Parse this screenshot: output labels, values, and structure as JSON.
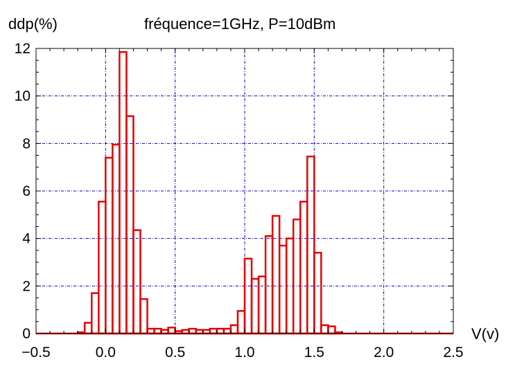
{
  "chart_data": {
    "type": "bar",
    "title": "fréquence=1GHz, P=10dBm",
    "ylabel": "ddp(%)",
    "xlabel": "V(v)",
    "xlim": [
      -0.5,
      2.5
    ],
    "ylim": [
      0,
      12
    ],
    "xticks": [
      "−0.5",
      "0.0",
      "0.5",
      "1.0",
      "1.5",
      "2.0",
      "2.5"
    ],
    "xtick_values": [
      -0.5,
      0.0,
      0.5,
      1.0,
      1.5,
      2.0,
      2.5
    ],
    "yticks": [
      "0",
      "2",
      "4",
      "6",
      "8",
      "10",
      "12"
    ],
    "ytick_values": [
      0,
      2,
      4,
      6,
      8,
      10,
      12
    ],
    "grid": true,
    "bar_color": "#e60000",
    "grid_color": "#0000c8",
    "bin_width": 0.05,
    "bin_centers": [
      -0.475,
      -0.425,
      -0.375,
      -0.325,
      -0.275,
      -0.225,
      -0.175,
      -0.125,
      -0.075,
      -0.025,
      0.025,
      0.075,
      0.125,
      0.175,
      0.225,
      0.275,
      0.325,
      0.375,
      0.425,
      0.475,
      0.525,
      0.575,
      0.625,
      0.675,
      0.725,
      0.775,
      0.825,
      0.875,
      0.925,
      0.975,
      1.025,
      1.075,
      1.125,
      1.175,
      1.225,
      1.275,
      1.325,
      1.375,
      1.425,
      1.475,
      1.525,
      1.575,
      1.625,
      1.675,
      1.725,
      1.775,
      1.825,
      1.875,
      1.925,
      1.975,
      2.025,
      2.075,
      2.125,
      2.175,
      2.225,
      2.275,
      2.325,
      2.375,
      2.425,
      2.475
    ],
    "values": [
      0,
      0,
      0,
      0,
      0,
      0,
      0.05,
      0.45,
      1.7,
      5.55,
      7.4,
      7.95,
      11.85,
      9.15,
      4.35,
      1.45,
      0.2,
      0.2,
      0.15,
      0.25,
      0.1,
      0.15,
      0.2,
      0.15,
      0.15,
      0.2,
      0.2,
      0.2,
      0.35,
      0.95,
      3.15,
      2.3,
      2.4,
      4.1,
      4.95,
      3.7,
      4.0,
      4.8,
      5.55,
      7.45,
      3.4,
      0.35,
      0.3,
      0.05,
      0,
      0,
      0,
      0,
      0,
      0,
      0,
      0,
      0,
      0,
      0,
      0,
      0,
      0,
      0,
      0
    ]
  }
}
